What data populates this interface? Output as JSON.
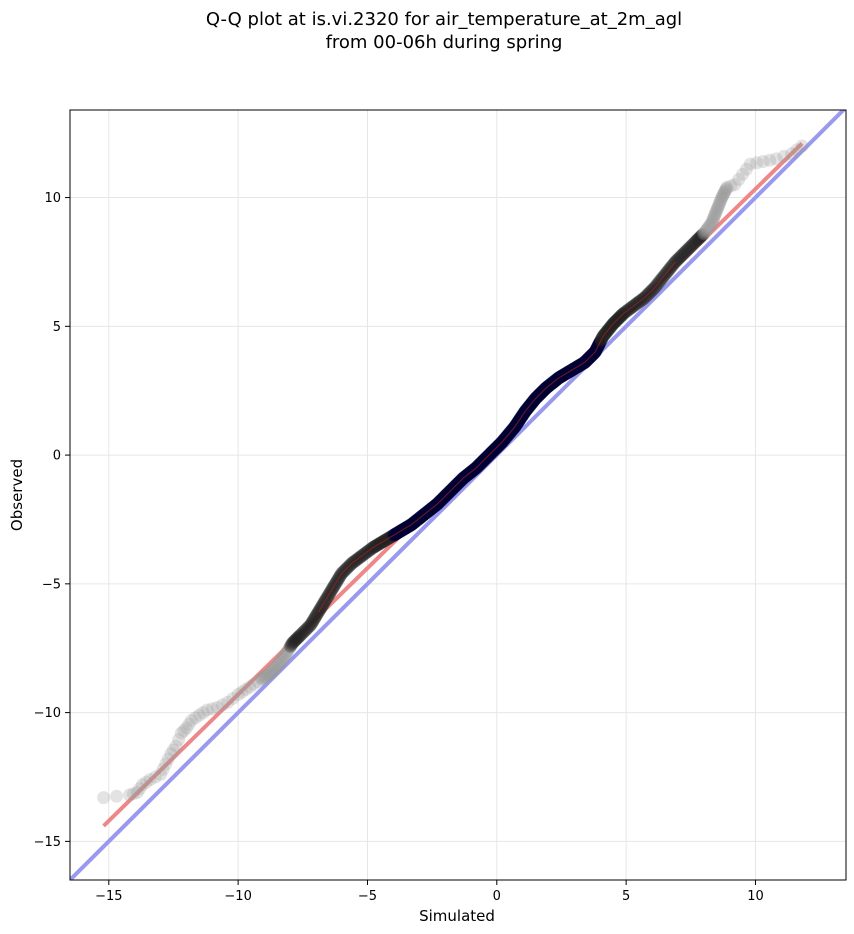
{
  "chart_data": {
    "type": "scatter",
    "title": "Q-Q plot at is.vi.2320 for air_temperature_at_2m_agl",
    "subtitle": "from 00-06h during spring",
    "xlabel": "Simulated",
    "ylabel": "Observed",
    "xlim": [
      -16.5,
      13.5
    ],
    "ylim": [
      -16.5,
      13.4
    ],
    "xticks": [
      -15,
      -10,
      -5,
      0,
      5,
      10
    ],
    "yticks": [
      -15,
      -10,
      -5,
      0,
      5,
      10
    ],
    "xtick_labels": [
      "−15",
      "−10",
      "−5",
      "0",
      "5",
      "10"
    ],
    "ytick_labels": [
      "−15",
      "−10",
      "−5",
      "0",
      "5",
      "10"
    ],
    "grid": true,
    "legend": "none",
    "quantile_points": [
      [
        -15.2,
        -13.3
      ],
      [
        -14.2,
        -13.2
      ],
      [
        -13.9,
        -13.1
      ],
      [
        -13.7,
        -12.8
      ],
      [
        -13.4,
        -12.6
      ],
      [
        -13.0,
        -12.4
      ],
      [
        -12.8,
        -12.0
      ],
      [
        -12.6,
        -11.6
      ],
      [
        -12.4,
        -11.3
      ],
      [
        -12.2,
        -10.8
      ],
      [
        -12.0,
        -10.6
      ],
      [
        -11.8,
        -10.3
      ],
      [
        -11.5,
        -10.1
      ],
      [
        -11.2,
        -9.9
      ],
      [
        -10.8,
        -9.8
      ],
      [
        -10.4,
        -9.6
      ],
      [
        -10.0,
        -9.3
      ],
      [
        -9.7,
        -9.1
      ],
      [
        -9.4,
        -8.9
      ],
      [
        -9.1,
        -8.7
      ],
      [
        -8.8,
        -8.5
      ],
      [
        -8.5,
        -8.2
      ],
      [
        -8.2,
        -7.8
      ],
      [
        -7.9,
        -7.3
      ],
      [
        -7.6,
        -7.0
      ],
      [
        -7.2,
        -6.6
      ],
      [
        -6.9,
        -6.1
      ],
      [
        -6.6,
        -5.6
      ],
      [
        -6.3,
        -5.1
      ],
      [
        -6.0,
        -4.6
      ],
      [
        -5.6,
        -4.2
      ],
      [
        -5.2,
        -3.9
      ],
      [
        -4.8,
        -3.6
      ],
      [
        -4.3,
        -3.3
      ],
      [
        -3.8,
        -3.0
      ],
      [
        -3.3,
        -2.7
      ],
      [
        -2.8,
        -2.3
      ],
      [
        -2.3,
        -1.9
      ],
      [
        -1.8,
        -1.4
      ],
      [
        -1.3,
        -0.9
      ],
      [
        -0.8,
        -0.5
      ],
      [
        -0.3,
        0.0
      ],
      [
        0.2,
        0.5
      ],
      [
        0.7,
        1.1
      ],
      [
        1.1,
        1.7
      ],
      [
        1.5,
        2.2
      ],
      [
        1.9,
        2.6
      ],
      [
        2.4,
        3.0
      ],
      [
        2.9,
        3.3
      ],
      [
        3.4,
        3.6
      ],
      [
        3.8,
        4.0
      ],
      [
        4.1,
        4.6
      ],
      [
        4.5,
        5.1
      ],
      [
        4.9,
        5.5
      ],
      [
        5.3,
        5.8
      ],
      [
        5.7,
        6.1
      ],
      [
        6.1,
        6.5
      ],
      [
        6.5,
        7.0
      ],
      [
        6.9,
        7.5
      ],
      [
        7.3,
        7.9
      ],
      [
        7.7,
        8.3
      ],
      [
        8.0,
        8.6
      ],
      [
        8.3,
        9.0
      ],
      [
        8.5,
        9.5
      ],
      [
        8.7,
        10.0
      ],
      [
        8.9,
        10.4
      ],
      [
        9.2,
        10.5
      ],
      [
        9.5,
        10.9
      ],
      [
        9.8,
        11.3
      ],
      [
        10.3,
        11.4
      ],
      [
        10.8,
        11.5
      ],
      [
        11.4,
        11.7
      ],
      [
        11.8,
        12.0
      ]
    ],
    "fit_line": {
      "x": [
        -15.2,
        11.8
      ],
      "y": [
        -14.4,
        12.1
      ],
      "color": "#ee8888"
    },
    "identity_line": {
      "x": [
        -16.5,
        13.5
      ],
      "y": [
        -16.5,
        13.5
      ],
      "color": "#9999ee"
    },
    "colors": {
      "points_light": "#999999",
      "points_dense": "#000033",
      "fit": "#ee8888",
      "identity": "#9999ee",
      "grid": "#e6e6e6"
    }
  }
}
